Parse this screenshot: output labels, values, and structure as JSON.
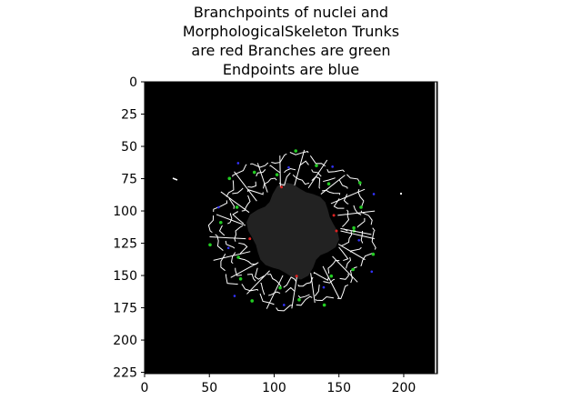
{
  "chart_data": {
    "type": "image",
    "title": [
      "Branchpoints of nuclei and",
      "MorphologicalSkeleton Trunks",
      "are red Branches are green",
      "Endpoints are blue"
    ],
    "xlim": [
      0,
      226
    ],
    "ylim": [
      226,
      0
    ],
    "xticks": [
      0,
      50,
      100,
      150,
      200
    ],
    "yticks": [
      0,
      25,
      50,
      75,
      100,
      125,
      150,
      175,
      200,
      225
    ]
  }
}
